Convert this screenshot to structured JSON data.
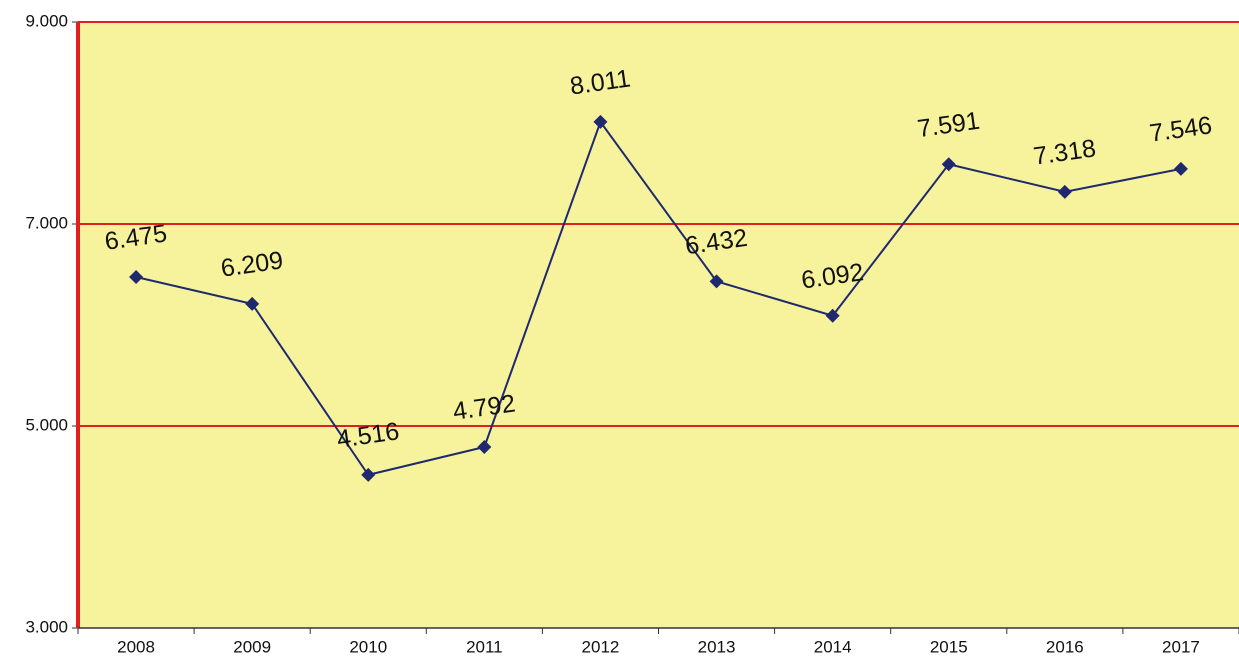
{
  "chart_data": {
    "type": "line",
    "categories": [
      "2008",
      "2009",
      "2010",
      "2011",
      "2012",
      "2013",
      "2014",
      "2015",
      "2016",
      "2017"
    ],
    "series": [
      {
        "name": null,
        "color": "#1f2a6e",
        "values": [
          6.475,
          6.209,
          4.516,
          4.792,
          8.011,
          6.432,
          6.092,
          7.591,
          7.318,
          7.546
        ]
      }
    ],
    "ylim": [
      3,
      9
    ],
    "yticks": [
      {
        "value": 3,
        "label": "3.000"
      },
      {
        "value": 5,
        "label": "5.000"
      },
      {
        "value": 7,
        "label": "7.000"
      },
      {
        "value": 9,
        "label": "9.000"
      }
    ],
    "grid": true,
    "grid_color": "#e02020",
    "plot_background": "#f7f29c"
  }
}
